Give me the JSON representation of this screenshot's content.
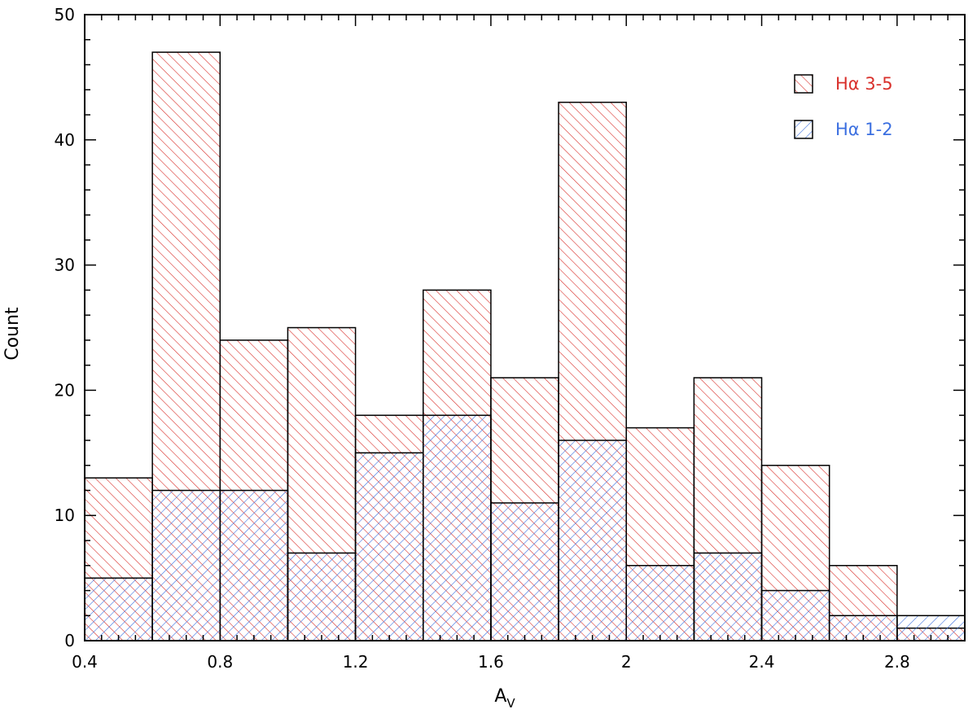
{
  "chart_data": {
    "type": "bar",
    "xlabel": "A",
    "xlabel_sub": "V",
    "ylabel": "Count",
    "xlim": [
      0.4,
      3.0
    ],
    "ylim": [
      0,
      50
    ],
    "x_ticks": [
      0.4,
      0.8,
      1.2,
      1.6,
      2,
      2.4,
      2.8
    ],
    "x_tick_labels": [
      "0.4",
      "0.8",
      "1.2",
      "1.6",
      "2",
      "2.4",
      "2.8"
    ],
    "y_ticks": [
      0,
      10,
      20,
      30,
      40,
      50
    ],
    "y_tick_labels": [
      "0",
      "10",
      "20",
      "30",
      "40",
      "50"
    ],
    "bin_edges": [
      0.4,
      0.6,
      0.8,
      1.0,
      1.2,
      1.4,
      1.6,
      1.8,
      2.0,
      2.2,
      2.4,
      2.6,
      2.8,
      3.0
    ],
    "grid": false,
    "legend_position": "top-right",
    "series": [
      {
        "name": "Hα 3-5",
        "color": "#d9302b",
        "hatch": "diagonal-down",
        "values": [
          13,
          47,
          24,
          25,
          18,
          28,
          21,
          43,
          17,
          21,
          14,
          6,
          1
        ]
      },
      {
        "name": "Hα 1-2",
        "color": "#3b6fe0",
        "hatch": "diagonal-up",
        "values": [
          5,
          12,
          12,
          7,
          15,
          18,
          11,
          16,
          6,
          7,
          4,
          2,
          2
        ]
      }
    ]
  }
}
